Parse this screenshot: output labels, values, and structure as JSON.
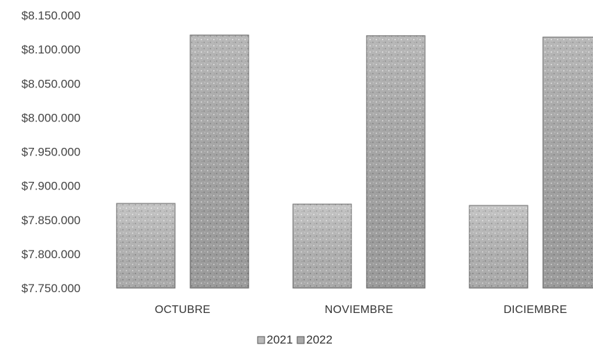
{
  "chart_data": {
    "type": "bar",
    "categories": [
      "OCTUBRE",
      "NOVIEMBRE",
      "DICIEMBRE"
    ],
    "series": [
      {
        "name": "2021",
        "values": [
          7874000,
          7873000,
          7871000
        ]
      },
      {
        "name": "2022",
        "values": [
          8121000,
          8120000,
          8118000
        ]
      }
    ],
    "y_ticks": [
      "$8.150.000",
      "$8.100.000",
      "$8.050.000",
      "$8.000.000",
      "$7.950.000",
      "$7.900.000",
      "$7.850.000",
      "$7.800.000",
      "$7.750.000"
    ],
    "ylim": [
      7750000,
      8150000
    ],
    "grid": false,
    "legend": {
      "position": "bottom",
      "entries": [
        "2021",
        "2022"
      ]
    },
    "colors": {
      "2021": "#b9b9b9",
      "2022": "#a9a9a9"
    }
  }
}
